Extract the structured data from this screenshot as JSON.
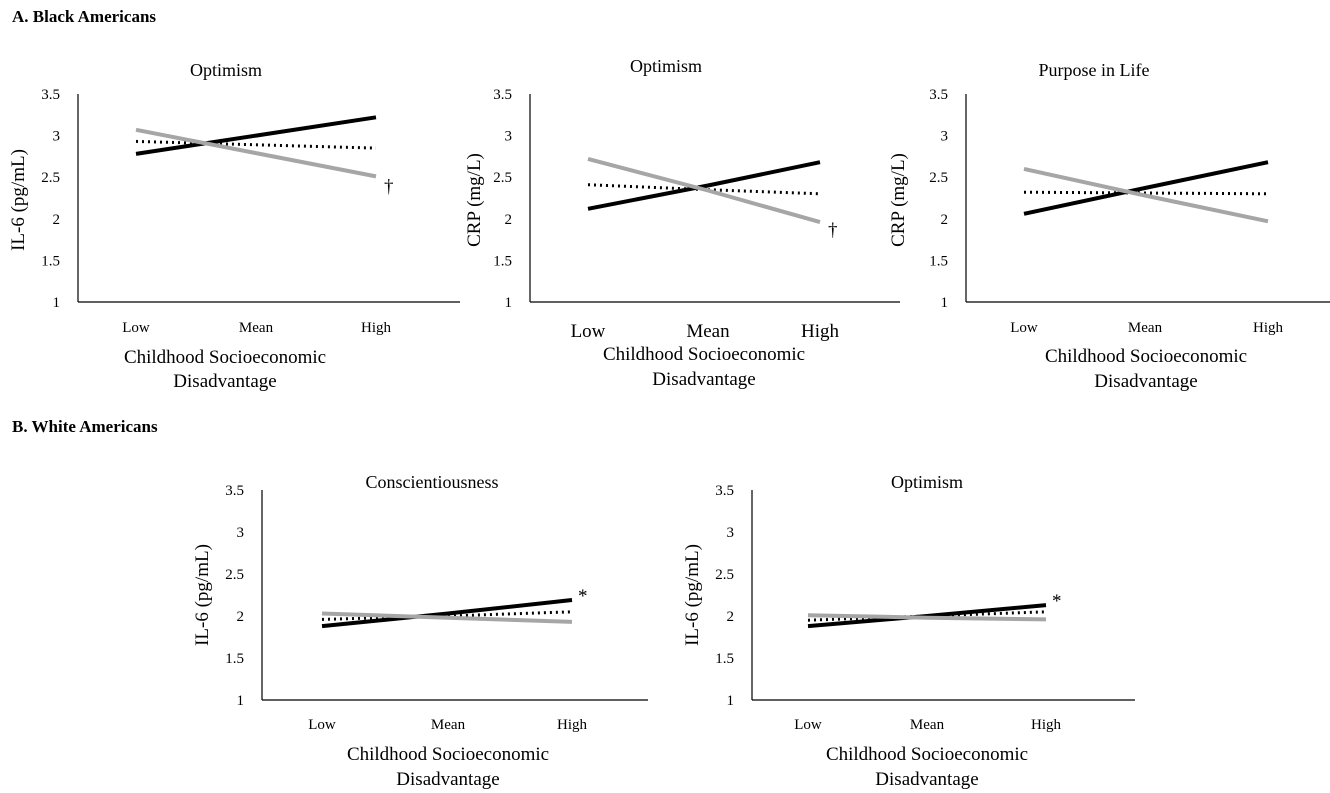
{
  "sections": [
    {
      "label": "A. Black Americans"
    },
    {
      "label": "B. White Americans"
    }
  ],
  "chart_data": [
    {
      "type": "line",
      "title": "Optimism",
      "ylabel": "IL-6 (pg/mL)",
      "xlabel": [
        "Childhood Socioeconomic",
        "Disadvantage"
      ],
      "categories": [
        "Low",
        "Mean",
        "High"
      ],
      "ylim": [
        1,
        3.5
      ],
      "yticks": [
        "1",
        "1.5",
        "2",
        "2.5",
        "3",
        "3.5"
      ],
      "series": [
        {
          "color": "#000000",
          "style": "solid",
          "values": [
            2.78,
            3.0,
            3.22
          ]
        },
        {
          "color": "#000000",
          "style": "dotted",
          "values": [
            2.93,
            2.89,
            2.85
          ]
        },
        {
          "color": "#a6a6a6",
          "style": "solid",
          "values": [
            3.07,
            2.79,
            2.51
          ]
        }
      ],
      "annotation": "†"
    },
    {
      "type": "line",
      "title": "Optimism",
      "ylabel": "CRP (mg/L)",
      "xlabel": [
        "Childhood Socioeconomic",
        "Disadvantage"
      ],
      "categories": [
        "Low",
        "Mean",
        "High"
      ],
      "ylim": [
        1,
        3.5
      ],
      "yticks": [
        "1",
        "1.5",
        "2",
        "2.5",
        "3",
        "3.5"
      ],
      "series": [
        {
          "color": "#000000",
          "style": "solid",
          "values": [
            2.12,
            2.4,
            2.68
          ]
        },
        {
          "color": "#000000",
          "style": "dotted",
          "values": [
            2.41,
            2.35,
            2.3
          ]
        },
        {
          "color": "#a6a6a6",
          "style": "solid",
          "values": [
            2.72,
            2.34,
            1.96
          ]
        }
      ],
      "annotation": "†"
    },
    {
      "type": "line",
      "title": "Purpose in Life",
      "ylabel": "CRP (mg/L)",
      "xlabel": [
        "Childhood Socioeconomic",
        "Disadvantage"
      ],
      "categories": [
        "Low",
        "Mean",
        "High"
      ],
      "ylim": [
        1,
        3.5
      ],
      "yticks": [
        "1",
        "1.5",
        "2",
        "2.5",
        "3",
        "3.5"
      ],
      "series": [
        {
          "color": "#000000",
          "style": "solid",
          "values": [
            2.06,
            2.37,
            2.68
          ]
        },
        {
          "color": "#000000",
          "style": "dotted",
          "values": [
            2.32,
            2.31,
            2.3
          ]
        },
        {
          "color": "#a6a6a6",
          "style": "solid",
          "values": [
            2.6,
            2.28,
            1.97
          ]
        }
      ],
      "annotation": ""
    },
    {
      "type": "line",
      "title": "Conscientiousness",
      "ylabel": "IL-6 (pg/mL)",
      "xlabel": [
        "Childhood Socioeconomic",
        "Disadvantage"
      ],
      "categories": [
        "Low",
        "Mean",
        "High"
      ],
      "ylim": [
        1,
        3.5
      ],
      "yticks": [
        "1",
        "1.5",
        "2",
        "2.5",
        "3",
        "3.5"
      ],
      "series": [
        {
          "color": "#000000",
          "style": "solid",
          "values": [
            1.88,
            2.03,
            2.19
          ]
        },
        {
          "color": "#000000",
          "style": "dotted",
          "values": [
            1.96,
            2.0,
            2.05
          ]
        },
        {
          "color": "#a6a6a6",
          "style": "solid",
          "values": [
            2.03,
            1.98,
            1.93
          ]
        }
      ],
      "annotation": "*"
    },
    {
      "type": "line",
      "title": "Optimism",
      "ylabel": "IL-6 (pg/mL)",
      "xlabel": [
        "Childhood Socioeconomic",
        "Disadvantage"
      ],
      "categories": [
        "Low",
        "Mean",
        "High"
      ],
      "ylim": [
        1,
        3.5
      ],
      "yticks": [
        "1",
        "1.5",
        "2",
        "2.5",
        "3",
        "3.5"
      ],
      "series": [
        {
          "color": "#000000",
          "style": "solid",
          "values": [
            1.88,
            2.0,
            2.13
          ]
        },
        {
          "color": "#000000",
          "style": "dotted",
          "values": [
            1.95,
            2.0,
            2.05
          ]
        },
        {
          "color": "#a6a6a6",
          "style": "solid",
          "values": [
            2.01,
            1.98,
            1.96
          ]
        }
      ],
      "annotation": "*"
    }
  ]
}
